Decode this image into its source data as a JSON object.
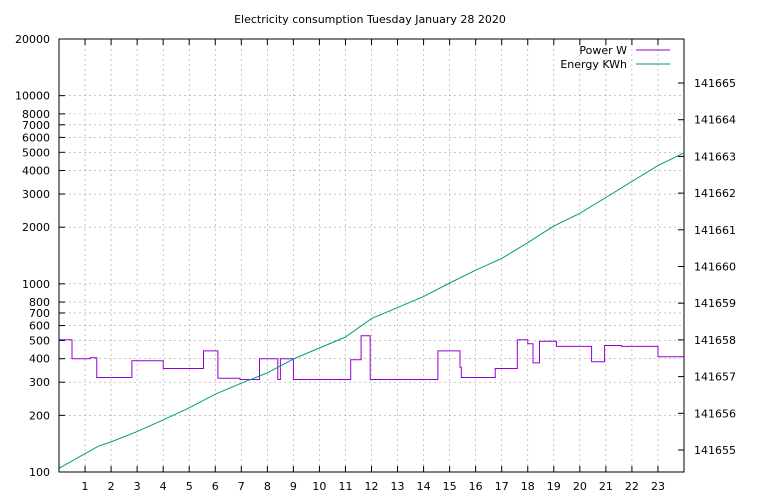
{
  "chart_data": {
    "type": "line",
    "title": "Electricity consumption Tuesday January 28 2020",
    "xlabel": "",
    "ylabel": "",
    "x_ticks": [
      "1",
      "2",
      "3",
      "4",
      "5",
      "6",
      "7",
      "8",
      "9",
      "10",
      "11",
      "12",
      "13",
      "14",
      "15",
      "16",
      "17",
      "18",
      "19",
      "20",
      "21",
      "22",
      "23"
    ],
    "xlim": [
      0,
      24
    ],
    "y_left": {
      "scale": "log",
      "lim": [
        100,
        20000
      ],
      "ticks": [
        100,
        200,
        300,
        400,
        500,
        600,
        700,
        800,
        1000,
        2000,
        3000,
        4000,
        5000,
        6000,
        7000,
        8000,
        10000,
        20000
      ]
    },
    "y_right": {
      "scale": "linear",
      "lim": [
        141654.4,
        141666.2
      ],
      "ticks": [
        141655,
        141656,
        141657,
        141658,
        141659,
        141660,
        141661,
        141662,
        141663,
        141664,
        141665
      ]
    },
    "grid": true,
    "legend_position": "top-right",
    "series": [
      {
        "name": "Power W",
        "axis": "left",
        "color": "#9400d3",
        "step": true,
        "x": [
          0,
          0.5,
          1.2,
          1.45,
          2.8,
          4.0,
          5.55,
          6.1,
          6.95,
          7.7,
          8.4,
          8.5,
          9.0,
          11.2,
          11.6,
          11.95,
          14.55,
          15.4,
          15.45,
          16.75,
          17.6,
          18.0,
          18.2,
          18.45,
          19.1,
          20.45,
          20.95,
          21.6,
          23.0,
          24.0
        ],
        "values": [
          505,
          400,
          405,
          318,
          390,
          355,
          440,
          315,
          310,
          400,
          310,
          400,
          310,
          395,
          530,
          310,
          440,
          360,
          318,
          355,
          505,
          480,
          380,
          495,
          465,
          385,
          470,
          465,
          410,
          410
        ]
      },
      {
        "name": "Energy KWh",
        "axis": "right",
        "color": "#009e73",
        "step": false,
        "x": [
          0,
          1,
          1.5,
          2,
          3,
          4,
          5,
          6,
          7,
          8,
          9,
          10,
          11,
          12,
          13,
          14,
          15,
          16,
          17,
          18,
          18.5,
          19,
          20,
          21,
          22,
          23,
          24
        ],
        "values": [
          141654.5,
          141654.9,
          141655.1,
          141655.22,
          141655.5,
          141655.82,
          141656.15,
          141656.52,
          141656.82,
          141657.1,
          141657.48,
          141657.78,
          141658.08,
          141658.58,
          141658.88,
          141659.18,
          141659.55,
          141659.9,
          141660.22,
          141660.65,
          141660.88,
          141661.1,
          141661.45,
          141661.88,
          141662.32,
          141662.75,
          141663.1
        ]
      }
    ]
  }
}
